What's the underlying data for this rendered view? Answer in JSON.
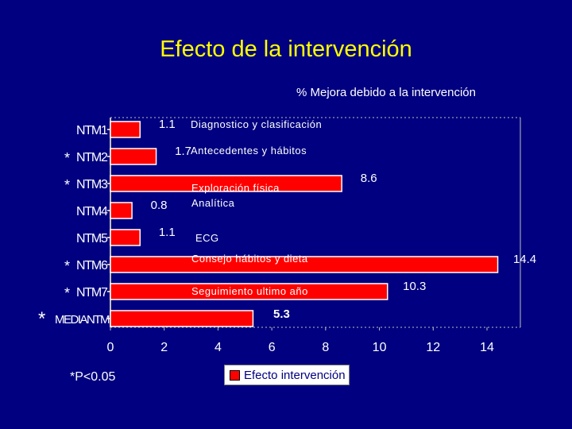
{
  "slide": {
    "title": "Efecto de la intervención",
    "footnote": "*P<0.05"
  },
  "colors": {
    "background": "#000080",
    "title": "#ffff00",
    "bar": "#ff0000",
    "bar_edge": "#ffffff",
    "text": "#ffffff",
    "legend_text": "#000080"
  },
  "chart_data": {
    "type": "bar",
    "orientation": "horizontal",
    "title": "% Mejora debido a la intervención",
    "categories": [
      "NTM1",
      "NTM2",
      "NTM3",
      "NTM4",
      "NTM5",
      "NTM6",
      "NTM7",
      "MEDIANTM"
    ],
    "values": [
      1.1,
      1.7,
      8.6,
      0.8,
      1.1,
      14.4,
      10.3,
      5.3
    ],
    "value_labels": [
      "1.1",
      "1.7",
      "8.6",
      "0.8",
      "1.1",
      "14.4",
      "10.3",
      "5.3"
    ],
    "category_descriptions": [
      "Diagnostico y clasificación",
      "Antecedentes y hábitos",
      "Exploración física",
      "Analítica",
      "ECG",
      "Consejo hábitos y dieta",
      "Seguimiento ultimo año",
      ""
    ],
    "significant": [
      false,
      true,
      true,
      false,
      false,
      true,
      true,
      true
    ],
    "significance_marker": "*",
    "series": [
      {
        "name": "Efecto intervención",
        "values": [
          1.1,
          1.7,
          8.6,
          0.8,
          1.1,
          14.4,
          10.3,
          5.3
        ]
      }
    ],
    "xlim": [
      0,
      15
    ],
    "xticks": [
      0,
      2,
      4,
      6,
      8,
      10,
      12,
      14
    ],
    "xlabel": "",
    "ylabel": "",
    "legend_position": "bottom-center",
    "grid": false
  }
}
